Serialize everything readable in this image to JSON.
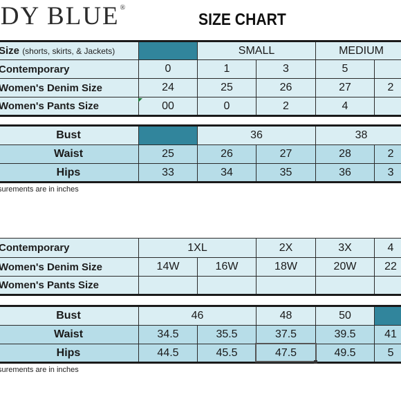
{
  "brand": {
    "name": "UDY BLUE",
    "mark": "®"
  },
  "title": "SIZE CHART",
  "table1": {
    "header_label": "Size",
    "header_sub": "(shorts, skirts, & Jackets)",
    "header_small": "SMALL",
    "header_medium": "MEDIUM",
    "rows": [
      {
        "label": "Contemporary",
        "v": [
          "0",
          "1",
          "3",
          "5",
          ""
        ]
      },
      {
        "label": "Women's Denim Size",
        "v": [
          "24",
          "25",
          "26",
          "27",
          "2"
        ]
      },
      {
        "label": "Women's Pants Size",
        "v": [
          "00",
          "0",
          "2",
          "4",
          ""
        ]
      }
    ]
  },
  "table2": {
    "bust_label": "Bust",
    "bust_36": "36",
    "bust_38": "38",
    "waist_label": "Waist",
    "waist": [
      "25",
      "26",
      "27",
      "28",
      "2"
    ],
    "hips_label": "Hips",
    "hips": [
      "33",
      "34",
      "35",
      "36",
      "3"
    ]
  },
  "note1": "surements are in inches",
  "table3": {
    "rows": [
      {
        "label": "Contemporary",
        "c1": "1XL",
        "c2": "2X",
        "c3": "3X",
        "c4": "4"
      },
      {
        "label": "Women's Denim Size",
        "v": [
          "14W",
          "16W",
          "18W",
          "20W",
          "22"
        ]
      },
      {
        "label": "Women's Pants Size",
        "v": [
          "",
          "",
          "",
          "",
          ""
        ]
      }
    ]
  },
  "table4": {
    "bust_label": "Bust",
    "bust_46": "46",
    "bust_48": "48",
    "bust_50": "50",
    "waist_label": "Waist",
    "waist": [
      "34.5",
      "35.5",
      "37.5",
      "39.5",
      "41"
    ],
    "hips_label": "Hips",
    "hips": [
      "44.5",
      "45.5",
      "47.5",
      "49.5",
      "5"
    ]
  },
  "note2": "surements are in inches",
  "colors": {
    "light": "#daeef3",
    "medium": "#b7dde8",
    "dark": "#31859c"
  }
}
